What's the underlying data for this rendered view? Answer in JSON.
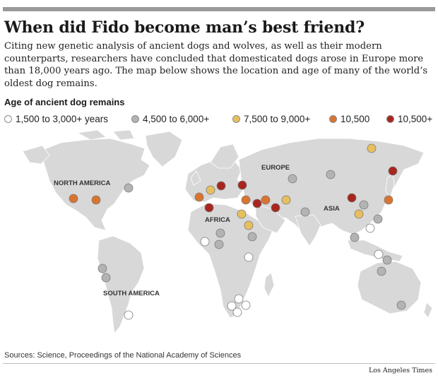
{
  "headline": "When did Fido become man’s best friend?",
  "intro": "Citing new genetic analysis of ancient dogs and wolves, as well as their modern counterparts, researchers have concluded that domesticated dogs arose in Europe more than 18,000 years ago. The map below shows the location and age of many of the world’s oldest dog remains.",
  "legend": {
    "title": "Age of ancient dog remains",
    "items": [
      {
        "label": "1,500 to 3,000+ years",
        "color": "#ffffff"
      },
      {
        "label": "4,500 to 6,000+",
        "color": "#b3b3b3"
      },
      {
        "label": "7,500 to 9,000+",
        "color": "#e8bf5e"
      },
      {
        "label": "10,500",
        "color": "#d87430"
      },
      {
        "label": "10,500+",
        "color": "#a8261d"
      }
    ]
  },
  "map": {
    "region_labels": {
      "north_america": "NORTH AMERICA",
      "south_america": "SOUTH AMERICA",
      "europe": "EUROPE",
      "africa": "AFRICA",
      "asia": "ASIA"
    },
    "land_color": "#d8d8d8",
    "site_colors": {
      "white": "#ffffff",
      "gray": "#b3b3b3",
      "yellow": "#e8bf5e",
      "orange": "#d87430",
      "red": "#a8261d"
    }
  },
  "source": "Sources: Science, Proceedings of the National Academy of Sciences",
  "credit": "Los Angeles Times"
}
